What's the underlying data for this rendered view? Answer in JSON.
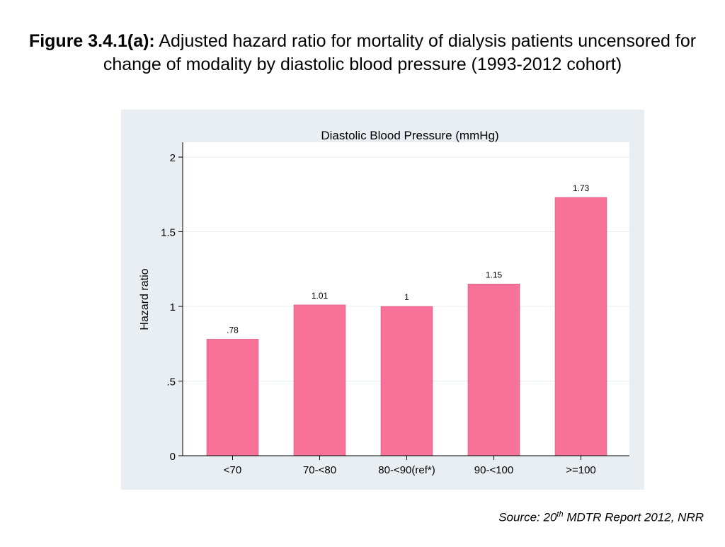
{
  "title": {
    "bold": "Figure 3.4.1(a):",
    "rest": " Adjusted hazard ratio for mortality of dialysis patients uncensored for change of modality by diastolic blood pressure (1993-2012 cohort)"
  },
  "source": {
    "prefix": "Source: 20",
    "sup": "th",
    "suffix": " MDTR Report 2012, NRR"
  },
  "colors": {
    "bar": "#f77199",
    "panel": "#e8eef1",
    "plot": "#ffffff",
    "grid": "#e6ecef"
  },
  "chart_data": {
    "type": "bar",
    "title": "Diastolic Blood Pressure (mmHg)",
    "xlabel": "",
    "ylabel": "Hazard ratio",
    "categories": [
      "<70",
      "70-<80",
      "80-<90(ref*)",
      "90-<100",
      ">=100"
    ],
    "values": [
      0.78,
      1.01,
      1,
      1.15,
      1.73
    ],
    "value_labels": [
      ".78",
      "1.01",
      "1",
      "1.15",
      "1.73"
    ],
    "ylim": [
      0,
      2
    ],
    "yticks": [
      0,
      0.5,
      1,
      1.5,
      2
    ],
    "ytick_labels": [
      "0",
      ".5",
      "1",
      "1.5",
      "2"
    ],
    "grid": true
  }
}
